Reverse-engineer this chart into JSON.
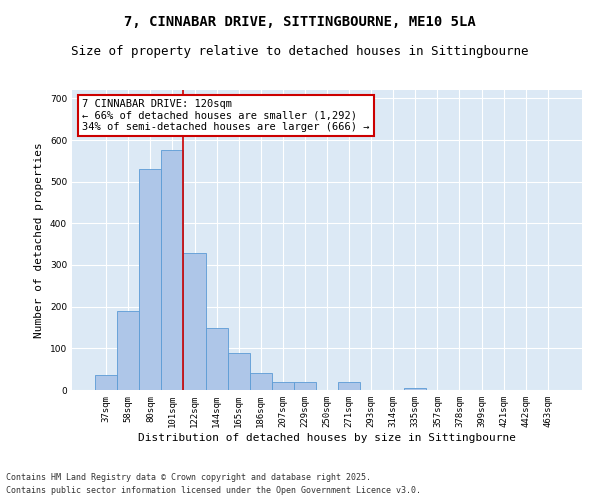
{
  "title": "7, CINNABAR DRIVE, SITTINGBOURNE, ME10 5LA",
  "subtitle": "Size of property relative to detached houses in Sittingbourne",
  "xlabel": "Distribution of detached houses by size in Sittingbourne",
  "ylabel": "Number of detached properties",
  "categories": [
    "37sqm",
    "58sqm",
    "80sqm",
    "101sqm",
    "122sqm",
    "144sqm",
    "165sqm",
    "186sqm",
    "207sqm",
    "229sqm",
    "250sqm",
    "271sqm",
    "293sqm",
    "314sqm",
    "335sqm",
    "357sqm",
    "378sqm",
    "399sqm",
    "421sqm",
    "442sqm",
    "463sqm"
  ],
  "values": [
    35,
    190,
    530,
    575,
    330,
    150,
    90,
    40,
    20,
    20,
    0,
    20,
    0,
    0,
    5,
    0,
    0,
    0,
    0,
    0,
    0
  ],
  "bar_color": "#aec6e8",
  "bar_edge_color": "#5b9bd5",
  "vline_color": "#cc0000",
  "annotation_line1": "7 CINNABAR DRIVE: 120sqm",
  "annotation_line2": "← 66% of detached houses are smaller (1,292)",
  "annotation_line3": "34% of semi-detached houses are larger (666) →",
  "annotation_box_color": "#cc0000",
  "ylim": [
    0,
    720
  ],
  "yticks": [
    0,
    100,
    200,
    300,
    400,
    500,
    600,
    700
  ],
  "bg_color": "#dce9f5",
  "footer_line1": "Contains HM Land Registry data © Crown copyright and database right 2025.",
  "footer_line2": "Contains public sector information licensed under the Open Government Licence v3.0.",
  "title_fontsize": 10,
  "subtitle_fontsize": 9,
  "axis_label_fontsize": 8,
  "tick_fontsize": 6.5,
  "annotation_fontsize": 7.5,
  "footer_fontsize": 6
}
